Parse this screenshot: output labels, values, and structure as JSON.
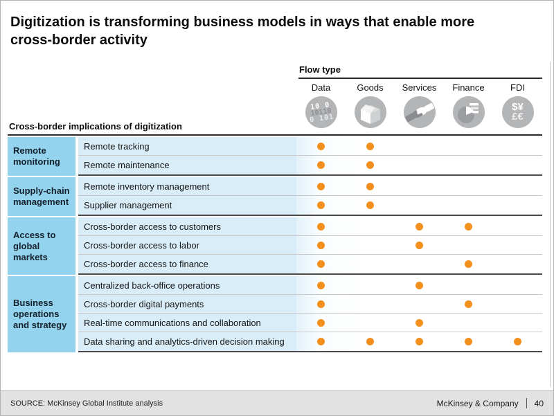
{
  "title": "Digitization is transforming business models in ways that enable more cross-border activity",
  "flow_header": {
    "label": "Flow type",
    "columns": [
      {
        "label": "Data",
        "icon": "binary-data-icon",
        "glyph_lines": [
          "10 0",
          "10110",
          "0 101"
        ]
      },
      {
        "label": "Goods",
        "icon": "package-box-icon"
      },
      {
        "label": "Services",
        "icon": "handshake-icon"
      },
      {
        "label": "Finance",
        "icon": "pie-chart-bars-icon"
      },
      {
        "label": "FDI",
        "icon": "currency-symbols-icon",
        "glyph_lines": [
          "$¥",
          "£€"
        ]
      }
    ]
  },
  "chart_data": {
    "type": "table",
    "title": "Cross-border implications of digitization",
    "column_group_label": "Flow type",
    "columns": [
      "Data",
      "Goods",
      "Services",
      "Finance",
      "FDI"
    ],
    "groups": [
      {
        "label": "Remote monitoring",
        "rows": [
          {
            "label": "Remote tracking",
            "dots": [
              1,
              1,
              0,
              0,
              0
            ]
          },
          {
            "label": "Remote maintenance",
            "dots": [
              1,
              1,
              0,
              0,
              0
            ]
          }
        ]
      },
      {
        "label": "Supply-chain management",
        "rows": [
          {
            "label": "Remote inventory management",
            "dots": [
              1,
              1,
              0,
              0,
              0
            ]
          },
          {
            "label": "Supplier management",
            "dots": [
              1,
              1,
              0,
              0,
              0
            ]
          }
        ]
      },
      {
        "label": "Access to global markets",
        "rows": [
          {
            "label": "Cross-border access to customers",
            "dots": [
              1,
              0,
              1,
              1,
              0
            ]
          },
          {
            "label": "Cross-border access to labor",
            "dots": [
              1,
              0,
              1,
              0,
              0
            ]
          },
          {
            "label": "Cross-border access to finance",
            "dots": [
              1,
              0,
              0,
              1,
              0
            ]
          }
        ]
      },
      {
        "label": "Business operations and strategy",
        "rows": [
          {
            "label": "Centralized back-office operations",
            "dots": [
              1,
              0,
              1,
              0,
              0
            ]
          },
          {
            "label": "Cross-border digital payments",
            "dots": [
              1,
              0,
              0,
              1,
              0
            ]
          },
          {
            "label": "Real-time communications and collaboration",
            "dots": [
              1,
              0,
              1,
              0,
              0
            ]
          },
          {
            "label": "Data sharing and analytics-driven decision making",
            "dots": [
              1,
              1,
              1,
              1,
              1
            ]
          }
        ]
      }
    ]
  },
  "footer": {
    "source": "SOURCE: McKinsey Global Institute analysis",
    "brand": "McKinsey & Company",
    "page": "40"
  },
  "colors": {
    "dot": "#F28F1D",
    "group_cell": "#94D3ED",
    "row_cell": "#D9EDF8",
    "icon_circle": "#B4B5B7"
  }
}
